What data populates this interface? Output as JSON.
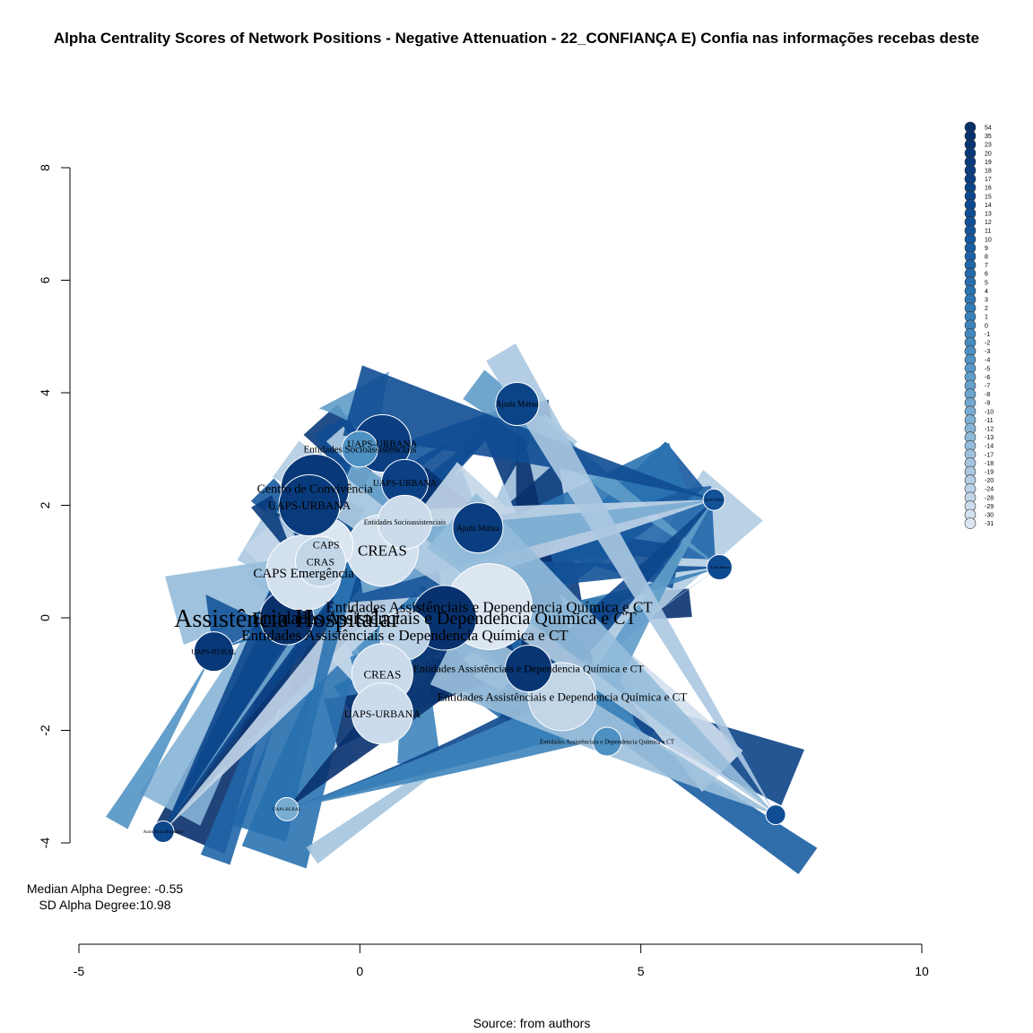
{
  "chart_data": {
    "type": "network",
    "title": "Alpha Centrality Scores of Network Positions - Negative Attenuation - 22_CONFIANÇA E) Confia nas informações recebas deste",
    "source": "Source: from authors",
    "stats": {
      "median_label": "Median Alpha Degree: -0.55",
      "sd_label": "SD Alpha Degree:10.98"
    },
    "x_axis": {
      "range": [
        -5,
        10
      ],
      "ticks": [
        -5,
        0,
        5,
        10
      ],
      "tick_labels": [
        "-5",
        "0",
        "5",
        "10"
      ]
    },
    "y_axis": {
      "range": [
        -4,
        8
      ],
      "ticks": [
        -4,
        -2,
        0,
        2,
        4,
        6,
        8
      ],
      "tick_labels": [
        "-4",
        "-2",
        "0",
        "2",
        "4",
        "6",
        "8"
      ]
    },
    "legend": {
      "position": "top-right",
      "values": [
        "54",
        "35",
        "23",
        "20",
        "19",
        "18",
        "17",
        "16",
        "15",
        "14",
        "13",
        "12",
        "11",
        "10",
        "9",
        "8",
        "7",
        "6",
        "5",
        "4",
        "3",
        "2",
        "1",
        "0",
        "-1",
        "-2",
        "-3",
        "-4",
        "-5",
        "-6",
        "-7",
        "-8",
        "-9",
        "-10",
        "-11",
        "-12",
        "-13",
        "-14",
        "-17",
        "-18",
        "-19",
        "-20",
        "-24",
        "-28",
        "-29",
        "-30",
        "-31"
      ],
      "colors": [
        "#08306b",
        "#08326f",
        "#083573",
        "#083877",
        "#093b7c",
        "#0a3e80",
        "#0b4184",
        "#0c4488",
        "#0d478c",
        "#0e4a90",
        "#104d94",
        "#125197",
        "#14559b",
        "#17599e",
        "#1a5ea2",
        "#1d62a5",
        "#2066a8",
        "#236bab",
        "#276fae",
        "#2b73b1",
        "#2f77b4",
        "#337bb6",
        "#3880b9",
        "#3d84bb",
        "#4288be",
        "#478cc0",
        "#4d90c2",
        "#5394c4",
        "#5998c7",
        "#5f9cc9",
        "#66a0cb",
        "#6ca4cd",
        "#72a8cf",
        "#79acd1",
        "#80b0d3",
        "#87b4d6",
        "#8eb8d8",
        "#95bcda",
        "#9cc0dc",
        "#a4c4de",
        "#abc8e1",
        "#b3cde3",
        "#bbd1e5",
        "#c3d6e8",
        "#cbdbeb",
        "#d3e0ee",
        "#dbe6f1"
      ]
    },
    "nodes": [
      {
        "id": 1,
        "label": "Assistência Hospitalar",
        "x": -1.3,
        "y": 0.0,
        "r": 30,
        "value": 54,
        "size": 28
      },
      {
        "id": 2,
        "label": "Entidades Assistênciais e Dependencia Química e CT",
        "x": 2.3,
        "y": 0.2,
        "r": 48,
        "value": -31,
        "size": 17
      },
      {
        "id": 3,
        "label": "Entidades Assistênciais e Dependencia Química e CT",
        "x": 1.5,
        "y": 0.0,
        "r": 36,
        "value": 35,
        "size": 20
      },
      {
        "id": 4,
        "label": "Entidades Assistênciais e Dependencia Química e CT",
        "x": 0.8,
        "y": -0.3,
        "r": 28,
        "value": -24,
        "size": 17
      },
      {
        "id": 5,
        "label": "Entidades Assistênciais e Dependencia Química e CT",
        "x": 3.6,
        "y": -1.4,
        "r": 38,
        "value": -28,
        "size": 13
      },
      {
        "id": 6,
        "label": "Entidades Assistênciais e Dependencia Química e CT",
        "x": 3.0,
        "y": -0.9,
        "r": 26,
        "value": 23,
        "size": 12
      },
      {
        "id": 7,
        "label": "Entidades Assistênciais e Dependencia Química e CT",
        "x": 4.4,
        "y": -2.2,
        "r": 16,
        "value": -3,
        "size": 7
      },
      {
        "id": 8,
        "label": "CREAS",
        "x": 0.4,
        "y": 1.2,
        "r": 40,
        "value": -30,
        "size": 17
      },
      {
        "id": 9,
        "label": "CREAS",
        "x": 0.4,
        "y": -1.0,
        "r": 34,
        "value": -29,
        "size": 13
      },
      {
        "id": 10,
        "label": "CAPS",
        "x": -0.6,
        "y": 1.3,
        "r": 30,
        "value": -31,
        "size": 12
      },
      {
        "id": 11,
        "label": "CAPS Emergência",
        "x": -1.0,
        "y": 0.8,
        "r": 42,
        "value": -30,
        "size": 15
      },
      {
        "id": 12,
        "label": "CRAS",
        "x": -0.7,
        "y": 1.0,
        "r": 28,
        "value": -28,
        "size": 12
      },
      {
        "id": 13,
        "label": "Centro de Convivência",
        "x": -0.8,
        "y": 2.3,
        "r": 38,
        "value": 20,
        "size": 14
      },
      {
        "id": 14,
        "label": "UAPS-URBANA",
        "x": -0.9,
        "y": 2.0,
        "r": 34,
        "value": 19,
        "size": 13
      },
      {
        "id": 15,
        "label": "UAPS-URBANA",
        "x": 0.4,
        "y": 3.1,
        "r": 32,
        "value": 18,
        "size": 11
      },
      {
        "id": 16,
        "label": "UAPS-URBANA",
        "x": 0.8,
        "y": 2.4,
        "r": 26,
        "value": 17,
        "size": 10
      },
      {
        "id": 17,
        "label": "UAPS-URBANA",
        "x": 0.4,
        "y": -1.7,
        "r": 34,
        "value": -29,
        "size": 12
      },
      {
        "id": 18,
        "label": "Entidades Socioassistenciais",
        "x": 0.0,
        "y": 3.0,
        "r": 20,
        "value": -3,
        "size": 11
      },
      {
        "id": 19,
        "label": "Entidades Socioassistenciais",
        "x": 0.8,
        "y": 1.7,
        "r": 30,
        "value": -29,
        "size": 8
      },
      {
        "id": 20,
        "label": "Ajuda Mútua",
        "x": 2.1,
        "y": 1.6,
        "r": 28,
        "value": 18,
        "size": 9
      },
      {
        "id": 21,
        "label": "Ajuda Mútua",
        "x": 2.8,
        "y": 3.8,
        "r": 24,
        "value": 16,
        "size": 9
      },
      {
        "id": 22,
        "label": "UAPS-RURAL",
        "x": -2.6,
        "y": -0.6,
        "r": 22,
        "value": 20,
        "size": 8
      },
      {
        "id": 23,
        "label": "Assistência Hospitalar",
        "x": -3.5,
        "y": -3.8,
        "r": 12,
        "value": 15,
        "size": 5
      },
      {
        "id": 24,
        "label": "Ajuda Mútua",
        "x": 6.4,
        "y": 0.9,
        "r": 14,
        "value": 14,
        "size": 4
      },
      {
        "id": 25,
        "label": "Ajuda Mútua",
        "x": 6.3,
        "y": 2.1,
        "r": 12,
        "value": 12,
        "size": 4
      },
      {
        "id": 26,
        "label": "UAPS-RURAL",
        "x": -1.3,
        "y": -3.4,
        "r": 13,
        "value": -10,
        "size": 5
      },
      {
        "id": 27,
        "label": "",
        "x": 7.4,
        "y": -3.5,
        "r": 11,
        "value": 13,
        "size": 4
      }
    ]
  }
}
